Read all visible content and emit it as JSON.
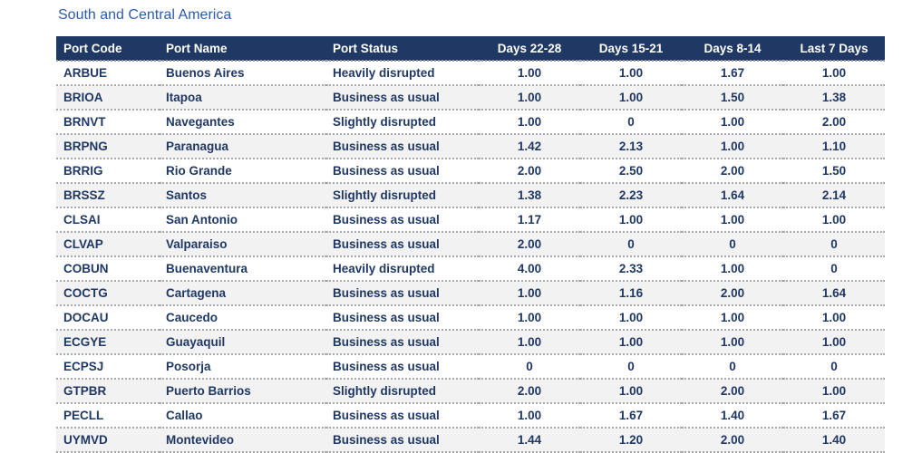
{
  "chart_data": {
    "type": "table",
    "title": "South and Central America",
    "columns": [
      "Port Code",
      "Port Name",
      "Port Status",
      "Days 22-28",
      "Days 15-21",
      "Days 8-14",
      "Last 7 Days"
    ],
    "rows": [
      [
        "ARBUE",
        "Buenos Aires",
        "Heavily disrupted",
        "1.00",
        "1.00",
        "1.67",
        "1.00"
      ],
      [
        "BRIOA",
        "Itapoa",
        "Business as usual",
        "1.00",
        "1.00",
        "1.50",
        "1.38"
      ],
      [
        "BRNVT",
        "Navegantes",
        "Slightly disrupted",
        "1.00",
        "0",
        "1.00",
        "2.00"
      ],
      [
        "BRPNG",
        "Paranagua",
        "Business as usual",
        "1.42",
        "2.13",
        "1.00",
        "1.10"
      ],
      [
        "BRRIG",
        "Rio Grande",
        "Business as usual",
        "2.00",
        "2.50",
        "2.00",
        "1.50"
      ],
      [
        "BRSSZ",
        "Santos",
        "Slightly disrupted",
        "1.38",
        "2.23",
        "1.64",
        "2.14"
      ],
      [
        "CLSAI",
        "San Antonio",
        "Business as usual",
        "1.17",
        "1.00",
        "1.00",
        "1.00"
      ],
      [
        "CLVAP",
        "Valparaiso",
        "Business as usual",
        "2.00",
        "0",
        "0",
        "0"
      ],
      [
        "COBUN",
        "Buenaventura",
        "Heavily disrupted",
        "4.00",
        "2.33",
        "1.00",
        "0"
      ],
      [
        "COCTG",
        "Cartagena",
        "Business as usual",
        "1.00",
        "1.16",
        "2.00",
        "1.64"
      ],
      [
        "DOCAU",
        "Caucedo",
        "Business as usual",
        "1.00",
        "1.00",
        "1.00",
        "1.00"
      ],
      [
        "ECGYE",
        "Guayaquil",
        "Business as usual",
        "1.00",
        "1.00",
        "1.00",
        "1.00"
      ],
      [
        "ECPSJ",
        "Posorja",
        "Business as usual",
        "0",
        "0",
        "0",
        "0"
      ],
      [
        "GTPBR",
        "Puerto Barrios",
        "Slightly disrupted",
        "2.00",
        "1.00",
        "2.00",
        "1.00"
      ],
      [
        "PECLL",
        "Callao",
        "Business as usual",
        "1.00",
        "1.67",
        "1.40",
        "1.67"
      ],
      [
        "UYMVD",
        "Montevideo",
        "Business as usual",
        "1.44",
        "1.20",
        "2.00",
        "1.40"
      ]
    ],
    "layout": {
      "grid": "dotted-row-separators",
      "alternating_rows": true,
      "legend": "none"
    }
  },
  "colors": {
    "header_bg": "#1f3864",
    "header_text": "#ffffff",
    "body_text": "#1f3864",
    "title_text": "#2e5ca8",
    "row_alt_bg": "#f2f2f2",
    "row_bg": "#ffffff",
    "divider": "#aaaaaa"
  }
}
